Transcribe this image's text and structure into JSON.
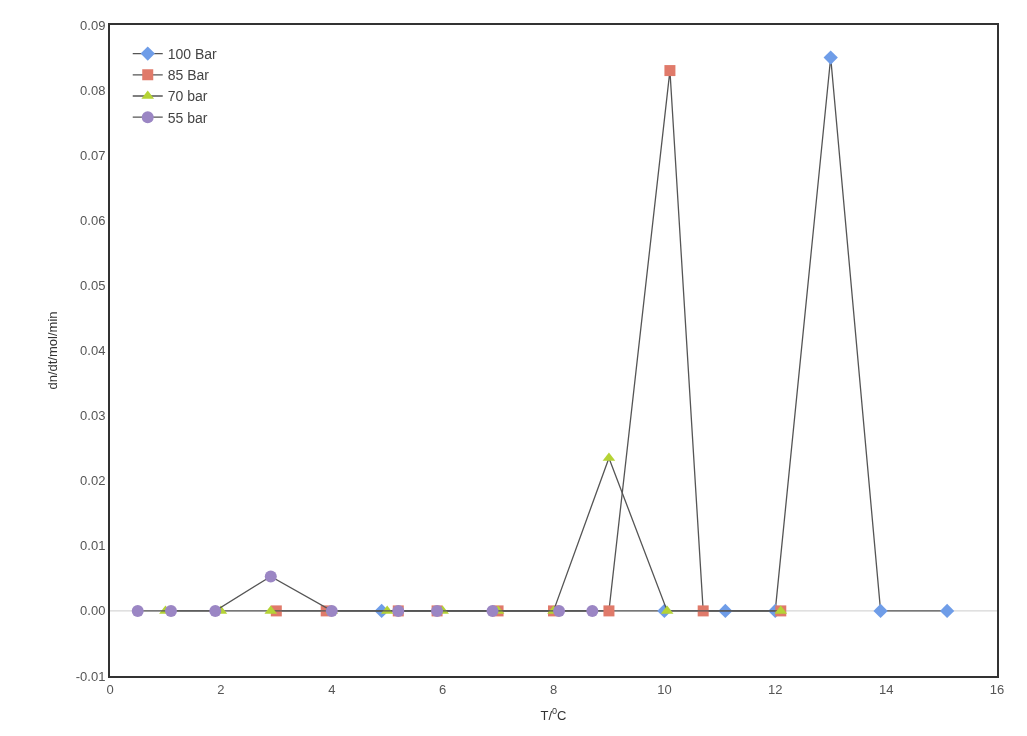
{
  "chart_data": {
    "type": "line",
    "xlabel": "T/$^{0}$C",
    "ylabel": "dn/dt/mol/min",
    "xlim": [
      0,
      16
    ],
    "xticks": [
      0,
      2,
      4,
      6,
      8,
      10,
      12,
      14,
      16
    ],
    "ylim": [
      -0.01,
      0.09
    ],
    "yticks": [
      {
        "value": -0.01,
        "label": "-0.01"
      },
      {
        "value": 0,
        "label": "0.00"
      },
      {
        "value": 0.01,
        "label": "0.01"
      },
      {
        "value": 0.02,
        "label": "0.02"
      },
      {
        "value": 0.03,
        "label": "0.03"
      },
      {
        "value": 0.04,
        "label": "0.04"
      },
      {
        "value": 0.05,
        "label": "0.05"
      },
      {
        "value": 0.06,
        "label": "0.06"
      },
      {
        "value": 0.07,
        "label": "0.07"
      },
      {
        "value": 0.08,
        "label": "0.08"
      },
      {
        "value": 0.09,
        "label": "0.09"
      }
    ],
    "grid": false,
    "ref_lines": [
      {
        "axis": "y",
        "value": 0,
        "color": "#cccccc"
      }
    ],
    "legend": "top left",
    "line_style": "solid",
    "series": [
      {
        "name": "100 Bar",
        "color": "#6f9de8",
        "marker": "diamond",
        "x": [
          4.9,
          10.0,
          11.1,
          12.0,
          13.0,
          13.9,
          15.1
        ],
        "values": [
          0,
          0,
          0,
          0,
          0.085,
          0,
          0
        ]
      },
      {
        "name": "85 Bar",
        "color": "#e07a6a",
        "marker": "square",
        "x": [
          3.0,
          3.9,
          5.2,
          5.9,
          7.0,
          8.0,
          9.0,
          10.1,
          10.7,
          12.1
        ],
        "values": [
          0,
          0,
          0,
          0,
          0,
          0,
          0,
          0.083,
          0,
          0
        ]
      },
      {
        "name": "70 bar",
        "color": "#b5d335",
        "marker": "triangle",
        "x": [
          1.0,
          2.0,
          2.9,
          4.0,
          5.0,
          6.0,
          7.0,
          8.0,
          9.0,
          10.05,
          12.1
        ],
        "values": [
          0,
          0,
          0,
          0,
          0,
          0,
          0,
          0,
          0.0235,
          0,
          0
        ]
      },
      {
        "name": "55 bar",
        "color": "#9b86c4",
        "marker": "circle",
        "x": [
          0.5,
          1.1,
          1.9,
          2.9,
          4.0,
          5.2,
          5.9,
          6.9,
          8.1,
          8.7
        ],
        "values": [
          0,
          0,
          0,
          0.0053,
          0,
          0,
          0,
          0,
          0,
          0
        ]
      }
    ]
  }
}
